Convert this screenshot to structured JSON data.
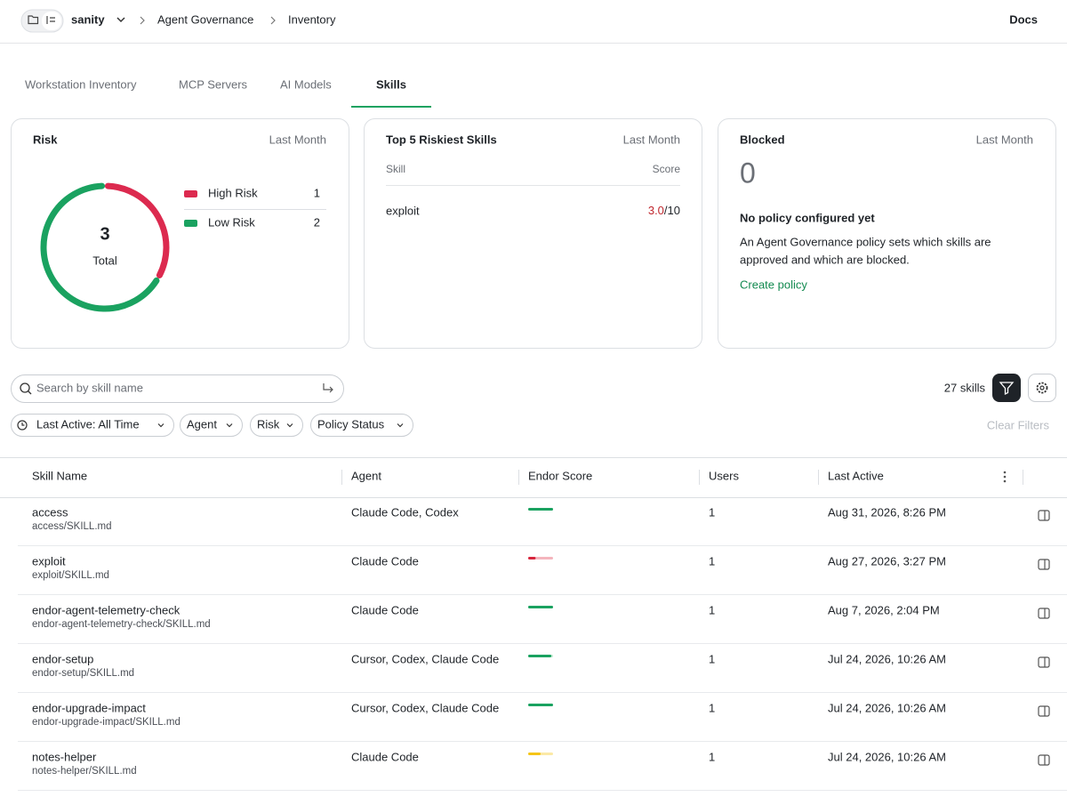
{
  "header": {
    "workspace": "sanity",
    "breadcrumbs": [
      "Agent Governance",
      "Inventory"
    ],
    "docs": "Docs"
  },
  "tabs": [
    "Workstation Inventory",
    "MCP Servers",
    "AI Models",
    "Skills"
  ],
  "risk_card": {
    "title": "Risk",
    "period": "Last Month",
    "items": [
      {
        "name": "High Risk",
        "value": 1,
        "color": "#dc2a4f"
      },
      {
        "name": "Low Risk",
        "value": 2,
        "color": "#1aa260"
      }
    ],
    "total": 3,
    "total_label": "Total"
  },
  "riskiest_card": {
    "title": "Top 5 Riskiest Skills",
    "period": "Last Month",
    "columns": [
      "Skill",
      "Score"
    ],
    "rows": [
      {
        "skill": "exploit",
        "score": "3.0",
        "max": "/10"
      }
    ]
  },
  "blocked_card": {
    "title": "Blocked",
    "period": "Last Month",
    "count": 0,
    "heading": "No policy configured yet",
    "text": [
      "An Agent Governance policy sets which skills are",
      "approved and which are blocked."
    ],
    "link": "Create policy"
  },
  "toolbar": {
    "search_placeholder": "Search by skill name",
    "count": "27 skills",
    "filters": [
      "Last Active: All Time",
      "Agent",
      "Risk",
      "Policy Status"
    ],
    "clear": "Clear Filters"
  },
  "table": {
    "columns": [
      "Skill Name",
      "Agent",
      "Endor Score",
      "Users",
      "Last Active"
    ],
    "rows": [
      {
        "name": "access",
        "path": "access/SKILL.md",
        "agent": "Claude Code, Codex",
        "score": 10,
        "users": 1,
        "last_active": "Aug 31, 2026, 8:26 PM"
      },
      {
        "name": "exploit",
        "path": "exploit/SKILL.md",
        "agent": "Claude Code",
        "score": 3,
        "users": 1,
        "last_active": "Aug 27, 2026, 3:27 PM"
      },
      {
        "name": "endor-agent-telemetry-check",
        "path": "endor-agent-telemetry-check/SKILL.md",
        "agent": "Claude Code",
        "score": 10,
        "users": 1,
        "last_active": "Aug 7, 2026, 2:04 PM"
      },
      {
        "name": "endor-setup",
        "path": "endor-setup/SKILL.md",
        "agent": "Cursor, Codex, Claude Code",
        "score": 9.3,
        "users": 1,
        "last_active": "Jul 24, 2026, 10:26 AM"
      },
      {
        "name": "endor-upgrade-impact",
        "path": "endor-upgrade-impact/SKILL.md",
        "agent": "Cursor, Codex, Claude Code",
        "score": 10,
        "users": 1,
        "last_active": "Jul 24, 2026, 10:26 AM"
      },
      {
        "name": "notes-helper",
        "path": "notes-helper/SKILL.md",
        "agent": "Claude Code",
        "score": 5,
        "users": 1,
        "last_active": "Jul 24, 2026, 10:26 AM"
      }
    ],
    "score_max": 10
  }
}
